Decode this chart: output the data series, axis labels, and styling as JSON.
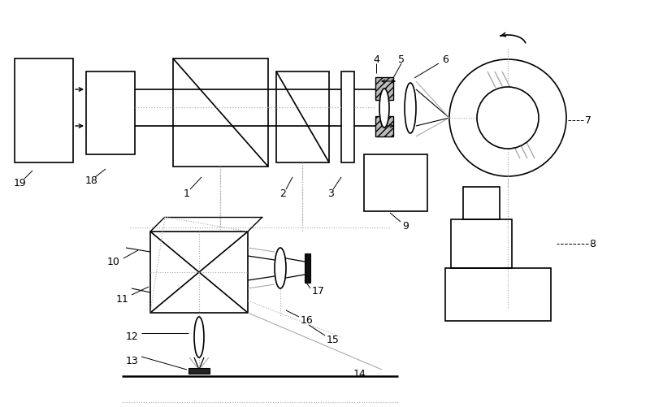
{
  "bg_color": "#ffffff",
  "lc": "#000000",
  "gc": "#aaaaaa",
  "dc": "#aaaaaa"
}
